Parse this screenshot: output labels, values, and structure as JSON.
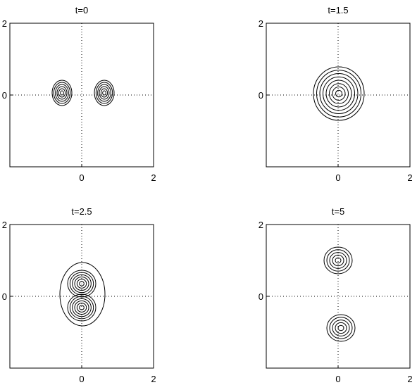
{
  "chart_data": [
    {
      "type": "contour",
      "title": "t=0",
      "xlim": [
        -2,
        2
      ],
      "ylim": [
        -2,
        2
      ],
      "xticks": [
        0,
        2
      ],
      "yticks": [
        0,
        2
      ]
    },
    {
      "type": "contour",
      "title": "t=1.5",
      "xlim": [
        -2,
        2
      ],
      "ylim": [
        -2,
        2
      ],
      "xticks": [
        0,
        2
      ],
      "yticks": [
        0,
        2
      ]
    },
    {
      "type": "contour",
      "title": "t=2.5",
      "xlim": [
        -2,
        2
      ],
      "ylim": [
        -2,
        2
      ],
      "xticks": [
        0,
        2
      ],
      "yticks": [
        0,
        2
      ]
    },
    {
      "type": "contour",
      "title": "t=5",
      "xlim": [
        -2,
        2
      ],
      "ylim": [
        -2,
        2
      ],
      "xticks": [
        0,
        2
      ],
      "yticks": [
        0,
        2
      ]
    }
  ]
}
